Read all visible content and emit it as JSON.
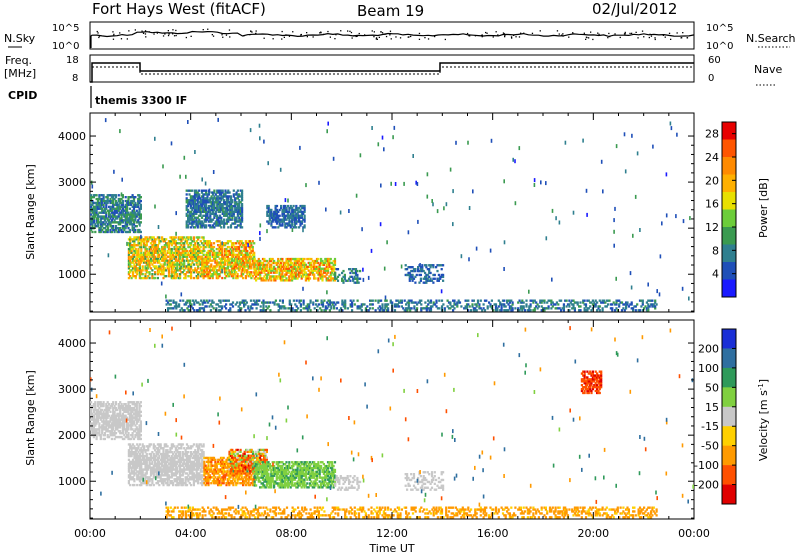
{
  "header": {
    "title": "Fort Hays West (fitACF)",
    "beam": "Beam 19",
    "date": "02/Jul/2012"
  },
  "noise_panel": {
    "left_label": "N.Sky",
    "right_label": "N.Search",
    "left_ticks": [
      "10^5",
      "10^0"
    ],
    "right_ticks": [
      "10^5",
      "10^0"
    ]
  },
  "freq_panel": {
    "left_label_1": "Freq.",
    "left_label_2": "[MHz]",
    "right_label": "Nave",
    "left_ticks": [
      "18",
      "8"
    ],
    "right_ticks": [
      "60",
      "0"
    ]
  },
  "cpid": {
    "label": "CPID",
    "value": "themis 3300 IF"
  },
  "chart_data": [
    {
      "type": "heatmap",
      "quantity": "power",
      "ylabel": "Slant Range [km]",
      "xlabel": "Time UT",
      "x_ticks": [
        "00:00",
        "04:00",
        "08:00",
        "12:00",
        "16:00",
        "20:00",
        "00:00"
      ],
      "x_range_hours": [
        0,
        24
      ],
      "y_ticks": [
        "1000",
        "2000",
        "3000",
        "4000"
      ],
      "y_range_km": [
        180,
        4500
      ],
      "colorbar": {
        "label": "Power [dB]",
        "ticks": [
          "4",
          "8",
          "12",
          "16",
          "20",
          "24",
          "28"
        ],
        "range": [
          0,
          30
        ],
        "colors": [
          "#1a1aff",
          "#1f4fb8",
          "#2f7f8f",
          "#3a9a50",
          "#6ccd3a",
          "#e8e000",
          "#ffb000",
          "#ff8a00",
          "#ff5500",
          "#e80000"
        ]
      },
      "regions": [
        {
          "t0": 0.0,
          "t1": 2.0,
          "r0": 1900,
          "r1": 2700,
          "v0": 4,
          "v1": 12
        },
        {
          "t0": 1.5,
          "t1": 4.5,
          "r0": 900,
          "r1": 1800,
          "v0": 10,
          "v1": 24
        },
        {
          "t0": 4.5,
          "t1": 6.5,
          "r0": 900,
          "r1": 1700,
          "v0": 12,
          "v1": 26
        },
        {
          "t0": 6.5,
          "t1": 9.7,
          "r0": 850,
          "r1": 1350,
          "v0": 12,
          "v1": 26
        },
        {
          "t0": 9.7,
          "t1": 10.7,
          "r0": 800,
          "r1": 1100,
          "v0": 4,
          "v1": 12
        },
        {
          "t0": 3.8,
          "t1": 6.0,
          "r0": 2000,
          "r1": 2800,
          "v0": 4,
          "v1": 10
        },
        {
          "t0": 7.0,
          "t1": 8.5,
          "r0": 2000,
          "r1": 2500,
          "v0": 4,
          "v1": 8
        },
        {
          "t0": 12.5,
          "t1": 14.0,
          "r0": 800,
          "r1": 1200,
          "v0": 4,
          "v1": 8
        },
        {
          "t0": 3.0,
          "t1": 22.5,
          "r0": 200,
          "r1": 450,
          "v0": 4,
          "v1": 10
        }
      ]
    },
    {
      "type": "heatmap",
      "quantity": "velocity",
      "ylabel": "Slant Range [km]",
      "xlabel": "Time UT",
      "x_ticks": [
        "00:00",
        "04:00",
        "08:00",
        "12:00",
        "16:00",
        "20:00",
        "00:00"
      ],
      "x_range_hours": [
        0,
        24
      ],
      "y_ticks": [
        "1000",
        "2000",
        "3000",
        "4000"
      ],
      "y_range_km": [
        180,
        4500
      ],
      "colorbar": {
        "label": "Velocity [m s",
        "label_sup": "-1",
        "label_end": "]",
        "ticks": [
          "200",
          "100",
          "50",
          "15",
          "-15",
          "-50",
          "-100",
          "-200"
        ],
        "colors": [
          "#1a2fd6",
          "#2f6fa0",
          "#2f9a5a",
          "#80d040",
          "#c8c8c8",
          "#ffd000",
          "#ff9a00",
          "#ff5000",
          "#e00000"
        ]
      },
      "regions": [
        {
          "t0": 0.0,
          "t1": 2.0,
          "r0": 1900,
          "r1": 2700,
          "v0": -10,
          "v1": 10
        },
        {
          "t0": 1.5,
          "t1": 4.5,
          "r0": 900,
          "r1": 1800,
          "v0": -10,
          "v1": 10
        },
        {
          "t0": 4.5,
          "t1": 6.5,
          "r0": 900,
          "r1": 1500,
          "v0": -120,
          "v1": -40
        },
        {
          "t0": 5.5,
          "t1": 7.0,
          "r0": 1200,
          "r1": 1700,
          "v0": -220,
          "v1": 60
        },
        {
          "t0": 6.5,
          "t1": 9.7,
          "r0": 850,
          "r1": 1400,
          "v0": 20,
          "v1": 60
        },
        {
          "t0": 9.7,
          "t1": 10.7,
          "r0": 800,
          "r1": 1100,
          "v0": -10,
          "v1": 10
        },
        {
          "t0": 12.5,
          "t1": 14.0,
          "r0": 800,
          "r1": 1200,
          "v0": -10,
          "v1": 10
        },
        {
          "t0": 3.0,
          "t1": 22.5,
          "r0": 200,
          "r1": 450,
          "v0": -90,
          "v1": -40
        },
        {
          "t0": 19.5,
          "t1": 20.3,
          "r0": 2900,
          "r1": 3400,
          "v0": -220,
          "v1": -150
        }
      ]
    }
  ]
}
